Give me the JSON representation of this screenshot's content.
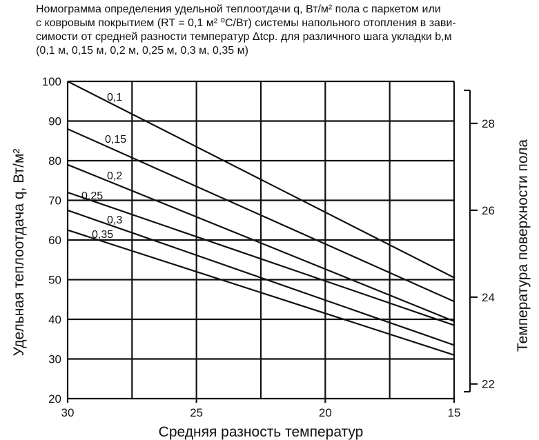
{
  "caption": {
    "line1": "Номограмма определения удельной теплоотдачи  q, Вт/м² пола с паркетом или",
    "line2": "с ковровым покрытием (RT = 0,1 м² ⁰С/Вт) системы напольного отопления в зави-",
    "line3": "симости от средней разности температур  Δtср.  для различного шага укладки b,м",
    "line4": "(0,1 м, 0,15 м, 0,2 м, 0,25 м, 0,3 м, 0,35 м)"
  },
  "chart_data": {
    "type": "line",
    "title": "",
    "xlabel": "Средняя разность температур",
    "ylabel": "Удельная теплоотдача q, Вт/м²",
    "y2label": "Температура поверхности пола",
    "xlim": [
      30,
      15
    ],
    "ylim": [
      20,
      100
    ],
    "x_ticks": [
      "30",
      "25",
      "20",
      "15"
    ],
    "y_ticks": [
      "20",
      "30",
      "40",
      "50",
      "60",
      "70",
      "80",
      "90",
      "100"
    ],
    "y2_ticks": [
      "22",
      "24",
      "26",
      "28"
    ],
    "y2_tick_q_values": [
      23.7,
      45.6,
      67.5,
      89.4
    ],
    "grid": true,
    "series": [
      {
        "name": "0,1",
        "x": [
          30,
          15
        ],
        "y": [
          100,
          50.5
        ]
      },
      {
        "name": "0,15",
        "x": [
          30,
          15
        ],
        "y": [
          88,
          44.5
        ]
      },
      {
        "name": "0,2",
        "x": [
          30,
          15
        ],
        "y": [
          79,
          39.5
        ]
      },
      {
        "name": "0,25",
        "x": [
          30,
          15
        ],
        "y": [
          72,
          38.5
        ]
      },
      {
        "name": "0,3",
        "x": [
          30,
          15
        ],
        "y": [
          67.5,
          33.5
        ]
      },
      {
        "name": "0,35",
        "x": [
          30,
          15
        ],
        "y": [
          62.5,
          31
        ]
      }
    ]
  }
}
